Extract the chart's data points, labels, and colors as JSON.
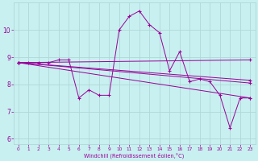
{
  "xlabel": "Windchill (Refroidissement éolien,°C)",
  "bg_color": "#c8f0f0",
  "grid_color": "#b0d8d8",
  "line_color": "#990099",
  "xlim": [
    -0.5,
    23.5
  ],
  "ylim": [
    5.8,
    11.0
  ],
  "xticks": [
    0,
    1,
    2,
    3,
    4,
    5,
    6,
    7,
    8,
    9,
    10,
    11,
    12,
    13,
    14,
    15,
    16,
    17,
    18,
    19,
    20,
    21,
    22,
    23
  ],
  "yticks": [
    6,
    7,
    8,
    9,
    10
  ],
  "main_x": [
    0,
    1,
    2,
    3,
    4,
    5,
    6,
    7,
    8,
    9,
    10,
    11,
    12,
    13,
    14,
    15,
    16,
    17,
    18,
    19,
    20,
    21,
    22,
    23
  ],
  "main_y": [
    8.8,
    8.8,
    8.8,
    8.8,
    8.9,
    8.9,
    7.5,
    7.8,
    7.6,
    7.6,
    10.0,
    10.5,
    10.7,
    10.2,
    9.9,
    8.5,
    9.2,
    8.1,
    8.2,
    8.1,
    7.6,
    6.4,
    7.5,
    7.5
  ],
  "line2_x": [
    0,
    23
  ],
  "line2_y": [
    8.8,
    8.9
  ],
  "line3_x": [
    0,
    23
  ],
  "line3_y": [
    8.8,
    7.5
  ],
  "line4_x": [
    0,
    23
  ],
  "line4_y": [
    8.8,
    8.15
  ],
  "line5_x": [
    0,
    23
  ],
  "line5_y": [
    8.8,
    8.05
  ]
}
